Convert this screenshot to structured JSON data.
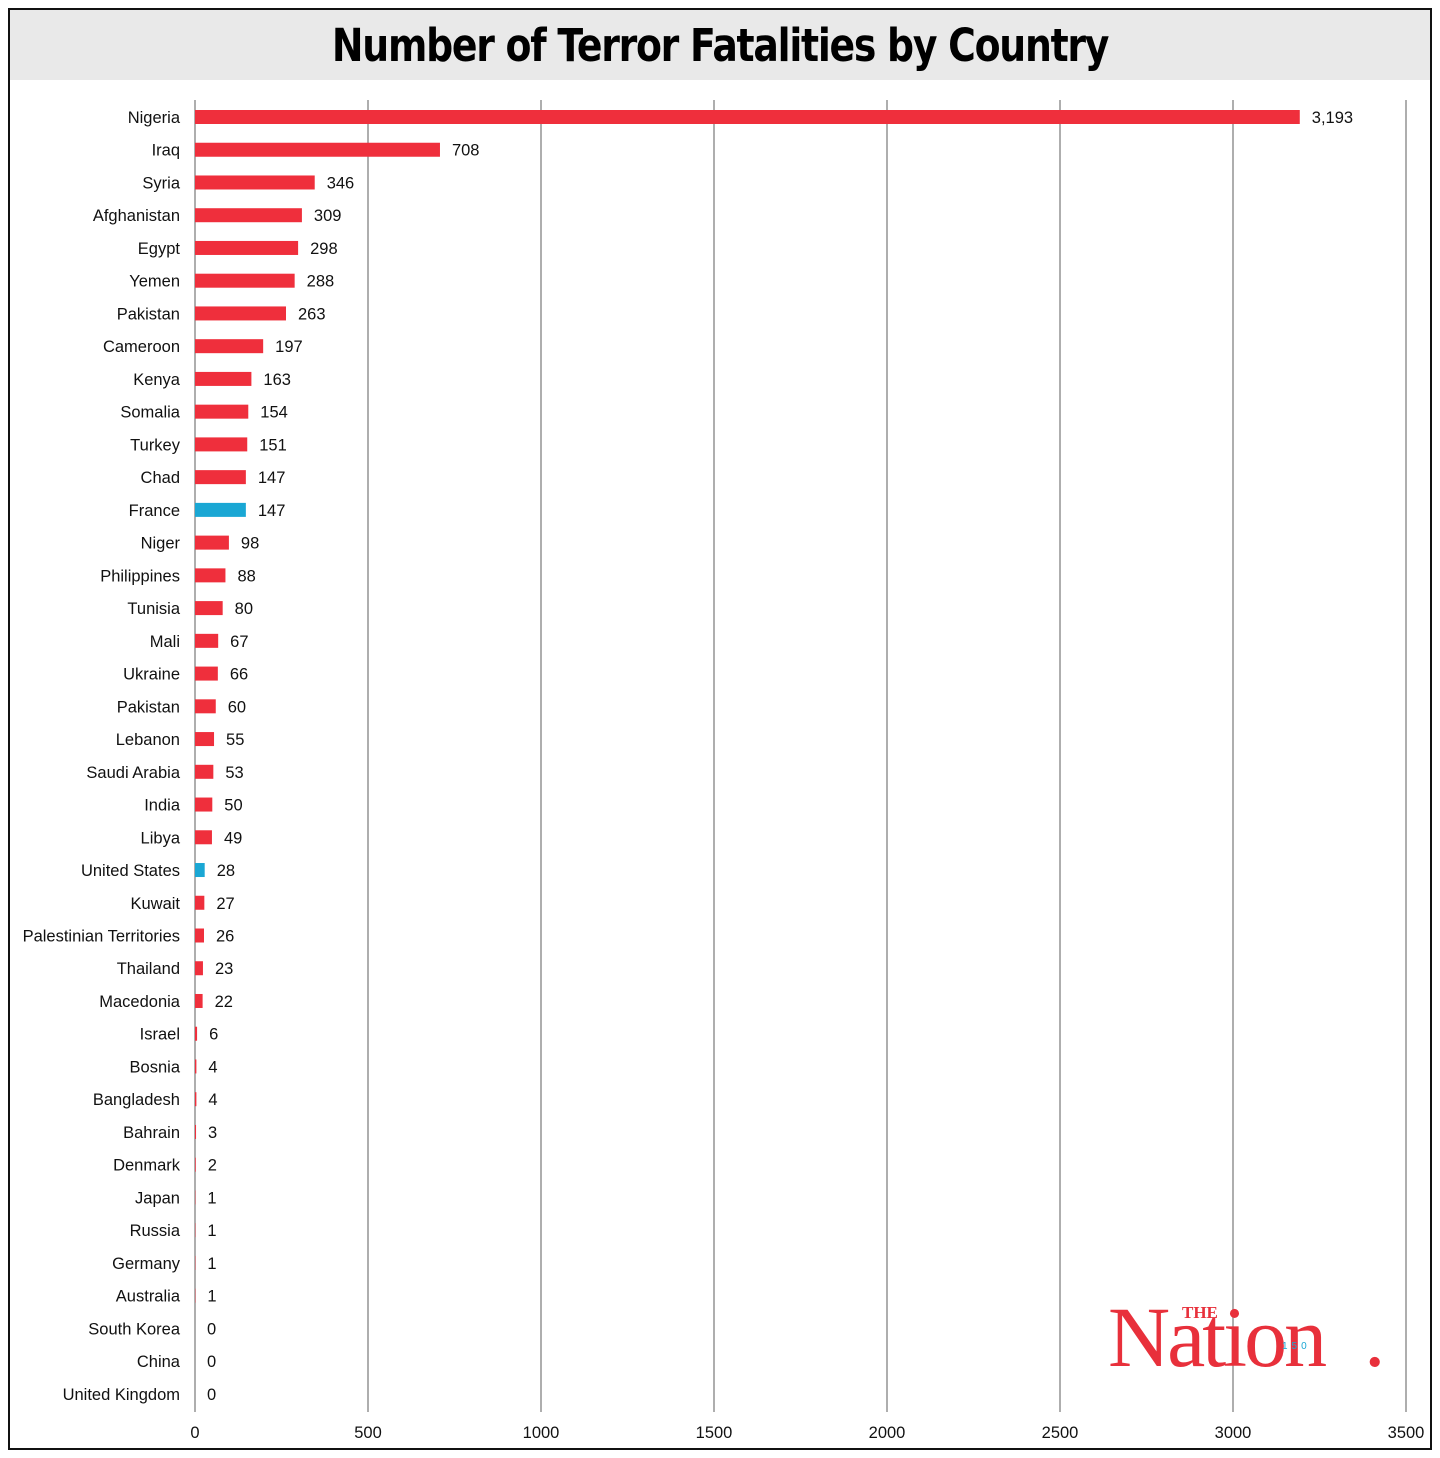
{
  "chart_data": {
    "type": "bar",
    "orientation": "horizontal",
    "title": "Number of Terror Fatalities by Country",
    "xlim": [
      0,
      3500
    ],
    "x_ticks": [
      0,
      500,
      1000,
      1500,
      2000,
      2500,
      3000,
      3500
    ],
    "grid": "vertical",
    "colors": {
      "default": "#ef2f3c",
      "highlight": "#1aa7d4"
    },
    "categories": [
      "Nigeria",
      "Iraq",
      "Syria",
      "Afghanistan",
      "Egypt",
      "Yemen",
      "Pakistan",
      "Cameroon",
      "Kenya",
      "Somalia",
      "Turkey",
      "Chad",
      "France",
      "Niger",
      "Philippines",
      "Tunisia",
      "Mali",
      "Ukraine",
      "Pakistan",
      "Lebanon",
      "Saudi Arabia",
      "India",
      "Libya",
      "United States",
      "Kuwait",
      "Palestinian Territories",
      "Thailand",
      "Macedonia",
      "Israel",
      "Bosnia",
      "Bangladesh",
      "Bahrain",
      "Denmark",
      "Japan",
      "Russia",
      "Germany",
      "Australia",
      "South Korea",
      "China",
      "United Kingdom"
    ],
    "values": [
      3193,
      708,
      346,
      309,
      298,
      288,
      263,
      197,
      163,
      154,
      151,
      147,
      147,
      98,
      88,
      80,
      67,
      66,
      60,
      55,
      53,
      50,
      49,
      28,
      27,
      26,
      23,
      22,
      6,
      4,
      4,
      3,
      2,
      1,
      1,
      1,
      1,
      0,
      0,
      0
    ],
    "value_labels": [
      "3,193",
      "708",
      "346",
      "309",
      "298",
      "288",
      "263",
      "197",
      "163",
      "154",
      "151",
      "147",
      "147",
      "98",
      "88",
      "80",
      "67",
      "66",
      "60",
      "55",
      "53",
      "50",
      "49",
      "28",
      "27",
      "26",
      "23",
      "22",
      "6",
      "4",
      "4",
      "3",
      "2",
      "1",
      "1",
      "1",
      "1",
      "0",
      "0",
      "0"
    ],
    "highlighted_categories": [
      "France",
      "United States"
    ]
  },
  "logo": {
    "the": "THE",
    "word": "Nation",
    "suffix": ".",
    "number": "150"
  }
}
